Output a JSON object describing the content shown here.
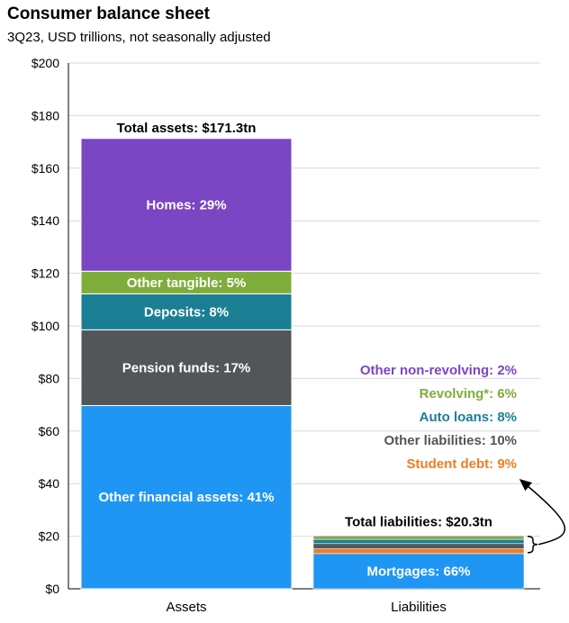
{
  "chart_data": {
    "type": "bar",
    "stacked": true,
    "title": "Consumer balance sheet",
    "subtitle": "3Q23, USD trillions, not seasonally adjusted",
    "categories": [
      "Assets",
      "Liabilities"
    ],
    "ylim": [
      0,
      200
    ],
    "y_ticks": [
      0,
      20,
      40,
      60,
      80,
      100,
      120,
      140,
      160,
      180,
      200
    ],
    "y_tick_labels": [
      "$0",
      "$20",
      "$40",
      "$60",
      "$80",
      "$100",
      "$120",
      "$140",
      "$160",
      "$180",
      "$200"
    ],
    "grid": true,
    "assets": {
      "total": 171.3,
      "total_label": "Total assets: $171.3tn",
      "segments": [
        {
          "label": "Other financial assets: 41%",
          "value": 69.7,
          "color": "#1f96f3"
        },
        {
          "label": "Pension funds: 17%",
          "value": 28.8,
          "color": "#525659"
        },
        {
          "label": "Deposits: 8%",
          "value": 13.7,
          "color": "#1b7f94"
        },
        {
          "label": "Other tangible: 5%",
          "value": 8.6,
          "color": "#7fad3b"
        },
        {
          "label": "Homes: 29%",
          "value": 50.5,
          "color": "#7a46c3"
        }
      ]
    },
    "liabilities": {
      "total": 20.3,
      "total_label": "Total liabilities: $20.3tn",
      "segments": [
        {
          "label": "Mortgages: 66%",
          "value": 13.4,
          "color": "#1f96f3"
        },
        {
          "label": "Student debt: 9%",
          "value": 1.8,
          "color": "#ef7d22"
        },
        {
          "label": "Other liabilities: 10%",
          "value": 2.0,
          "color": "#525659"
        },
        {
          "label": "Auto loans: 8%",
          "value": 1.6,
          "color": "#1b7f94"
        },
        {
          "label": "Revolving*: 6%",
          "value": 1.2,
          "color": "#7fad3b"
        },
        {
          "label": "Other non-revolving: 2%",
          "value": 0.3,
          "color": "#7a46c3"
        }
      ],
      "side_labels": [
        {
          "label": "Other non-revolving: 2%",
          "color": "#7a46c3"
        },
        {
          "label": "Revolving*: 6%",
          "color": "#7fad3b"
        },
        {
          "label": "Auto loans: 8%",
          "color": "#1b7f94"
        },
        {
          "label": "Other liabilities: 10%",
          "color": "#525659"
        },
        {
          "label": "Student debt: 9%",
          "color": "#ef7d22"
        }
      ]
    }
  }
}
